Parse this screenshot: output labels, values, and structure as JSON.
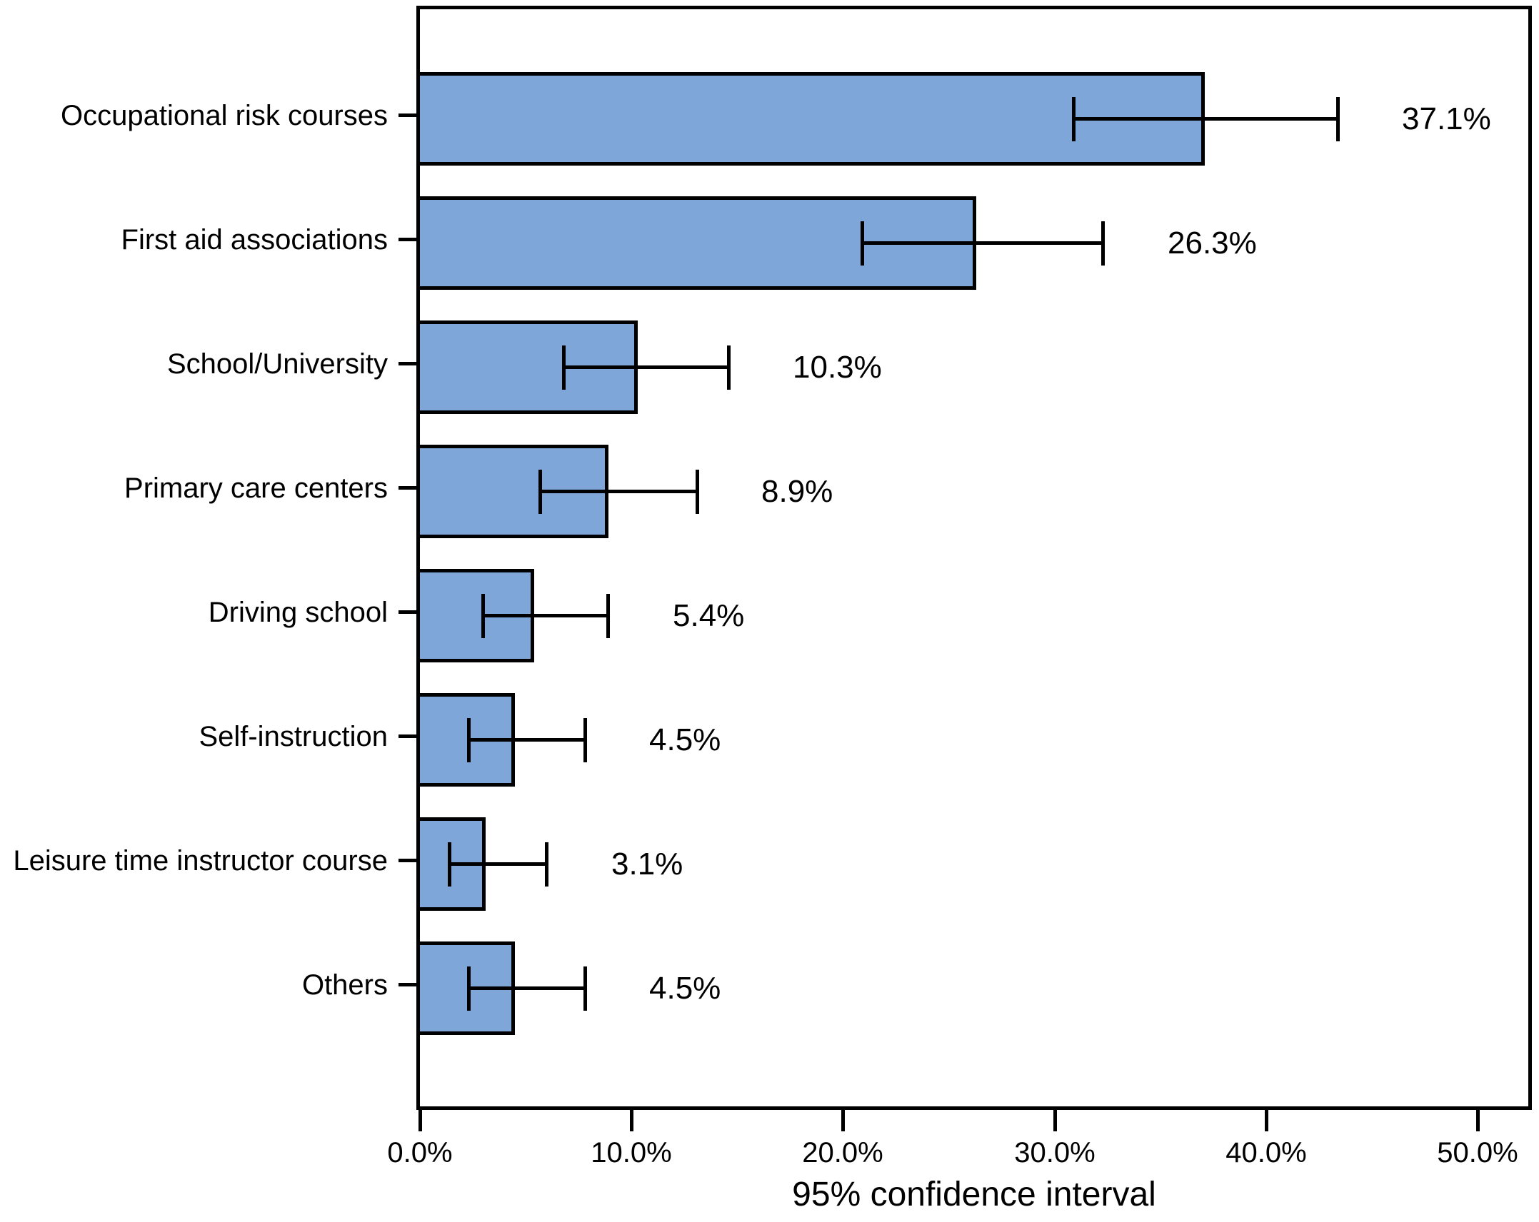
{
  "chart_data": {
    "type": "bar",
    "orientation": "horizontal",
    "title": "",
    "xlabel": "95% confidence interval",
    "categories": [
      "Occupational risk courses",
      "First aid associations",
      "School/University",
      "Primary care centers",
      "Driving school",
      "Self-instruction",
      "Leisure time instructor course",
      "Others"
    ],
    "values": [
      37.1,
      26.3,
      10.3,
      8.9,
      5.4,
      4.5,
      3.1,
      4.5
    ],
    "value_labels": [
      "37.1%",
      "26.3%",
      "10.3%",
      "8.9%",
      "5.4%",
      "4.5%",
      "3.1%",
      "4.5%"
    ],
    "ci_low": [
      30.9,
      20.9,
      6.8,
      5.7,
      3.0,
      2.3,
      1.4,
      2.3
    ],
    "ci_high": [
      43.4,
      32.3,
      14.6,
      13.1,
      8.9,
      7.8,
      6.0,
      7.8
    ],
    "xlim": [
      0,
      52.4
    ],
    "xticks": [
      0,
      10,
      20,
      30,
      40,
      50
    ],
    "xtick_labels": [
      "0.0%",
      "10.0%",
      "20.0%",
      "30.0%",
      "40.0%",
      "50.0%"
    ],
    "grid": false,
    "legend": null,
    "bar_color": "#7EA6D8",
    "bar_border_color": "#000000",
    "error_bar_color": "#000000"
  }
}
